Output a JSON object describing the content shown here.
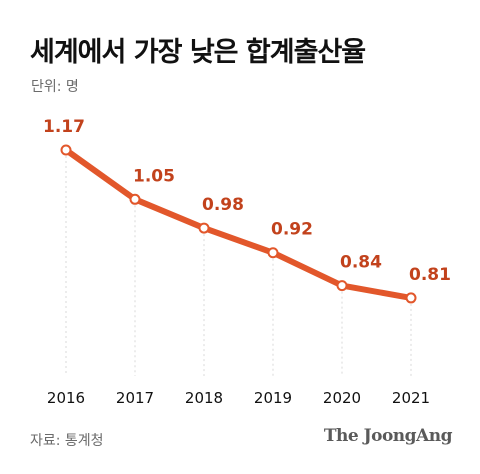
{
  "title": "세계에서 가장 낮은 합계출산율",
  "unit_label": "단위: 명",
  "source": "자료: 통계청",
  "brand": "The JoongAng",
  "colors": {
    "line": "#e2572b",
    "label": "#c2421c",
    "grid": "#d9d9d9",
    "text": "#111111"
  },
  "chart_data": {
    "type": "line",
    "title": "세계에서 가장 낮은 합계출산율",
    "xlabel": "",
    "ylabel": "",
    "x": [
      "2016",
      "2017",
      "2018",
      "2019",
      "2020",
      "2021"
    ],
    "series": [
      {
        "values": [
          1.17,
          1.05,
          0.98,
          0.92,
          0.84,
          0.81
        ]
      }
    ],
    "data_labels": [
      "1.17",
      "1.05",
      "0.98",
      "0.92",
      "0.84",
      "0.81"
    ],
    "ylim": [
      0.62,
      1.17
    ],
    "grid": false,
    "legend": "none"
  }
}
